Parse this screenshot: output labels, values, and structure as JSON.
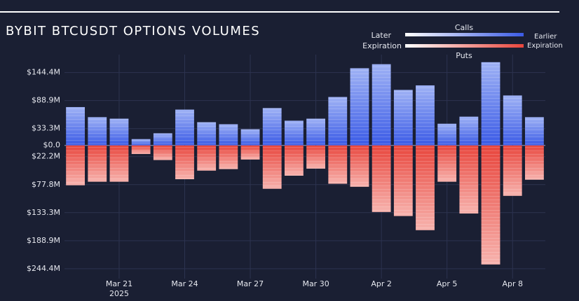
{
  "chart_data": {
    "type": "diverging_bar",
    "title": "BYBIT BTCUSDT OPTIONS VOLUMES",
    "x": [
      "2025-03-19",
      "2025-03-20",
      "2025-03-21",
      "2025-03-22",
      "2025-03-23",
      "2025-03-24",
      "2025-03-25",
      "2025-03-26",
      "2025-03-27",
      "2025-03-28",
      "2025-03-29",
      "2025-03-30",
      "2025-03-31",
      "2025-04-01",
      "2025-04-02",
      "2025-04-03",
      "2025-04-04",
      "2025-04-05",
      "2025-04-06",
      "2025-04-07",
      "2025-04-08",
      "2025-04-09"
    ],
    "xlim": [
      "2025-03-18T12:00:00Z",
      "2025-04-09T12:00:00Z"
    ],
    "xticks": [
      {
        "value": "2025-03-21",
        "label": "Mar 21"
      },
      {
        "value": "2025-03-24",
        "label": "Mar 24"
      },
      {
        "value": "2025-03-27",
        "label": "Mar 27"
      },
      {
        "value": "2025-03-30",
        "label": "Mar 30"
      },
      {
        "value": "2025-04-02",
        "label": "Apr 2"
      },
      {
        "value": "2025-04-05",
        "label": "Apr 5"
      },
      {
        "value": "2025-04-08",
        "label": "Apr 8"
      }
    ],
    "x_year_label": "2025",
    "ylim": [
      -264,
      180
    ],
    "yticks": [
      {
        "value": 144.4,
        "label": "$144.4M"
      },
      {
        "value": 88.9,
        "label": "$88.9M"
      },
      {
        "value": 33.3,
        "label": "$33.3M"
      },
      {
        "value": 0,
        "label": "$0.0"
      },
      {
        "value": -22.2,
        "label": "$22.2M"
      },
      {
        "value": -77.8,
        "label": "$77.8M"
      },
      {
        "value": -133.3,
        "label": "$133.3M"
      },
      {
        "value": -188.9,
        "label": "$188.9M"
      },
      {
        "value": -244.4,
        "label": "$244.4M"
      }
    ],
    "grid": true,
    "series": [
      {
        "name": "Calls",
        "color": "#3b5be6",
        "light": "#ffffff",
        "values": [
          76,
          56,
          53,
          12.5,
          24,
          71,
          46,
          42,
          32,
          74,
          49,
          53,
          96,
          153,
          161,
          110,
          119,
          43,
          57,
          165,
          99,
          56
        ]
      },
      {
        "name": "Puts",
        "color": "#e8453c",
        "light": "#ffffff",
        "values": [
          -79,
          -72,
          -72,
          -17,
          -29,
          -67,
          -50,
          -47,
          -28,
          -86,
          -60,
          -46,
          -76,
          -82,
          -132,
          -140,
          -168,
          -72,
          -135,
          -236,
          -100,
          -68
        ]
      }
    ],
    "legend": {
      "left": [
        "Later",
        "Expiration"
      ],
      "right": [
        "Earlier",
        "Expiration"
      ]
    }
  }
}
